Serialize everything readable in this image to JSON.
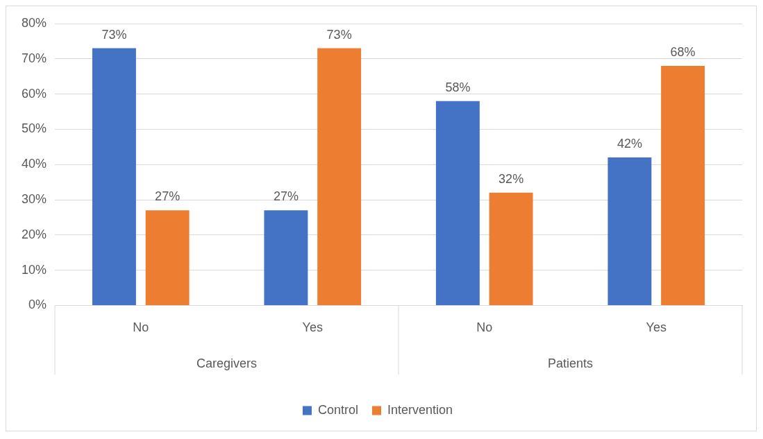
{
  "chart_data": {
    "type": "bar",
    "categories": [
      "No",
      "Yes",
      "No",
      "Yes"
    ],
    "series": [
      {
        "name": "Control",
        "color": "#4472c4",
        "values": [
          73,
          27,
          58,
          42
        ],
        "value_labels": [
          "73%",
          "27%",
          "58%",
          "42%"
        ]
      },
      {
        "name": "Intervention",
        "color": "#ed7d31",
        "values": [
          27,
          73,
          32,
          68
        ],
        "value_labels": [
          "27%",
          "73%",
          "32%",
          "68%"
        ]
      }
    ],
    "annotations": [
      "Caregivers",
      "Patients"
    ],
    "ylim": [
      0,
      80
    ],
    "yticks": [
      {
        "value": 0,
        "label": "0%"
      },
      {
        "value": 10,
        "label": "10%"
      },
      {
        "value": 20,
        "label": "20%"
      },
      {
        "value": 30,
        "label": "30%"
      },
      {
        "value": 40,
        "label": "40%"
      },
      {
        "value": 50,
        "label": "50%"
      },
      {
        "value": 60,
        "label": "60%"
      },
      {
        "value": 70,
        "label": "70%"
      },
      {
        "value": 80,
        "label": "80%"
      }
    ],
    "grid": "y",
    "legend": "bottom"
  }
}
